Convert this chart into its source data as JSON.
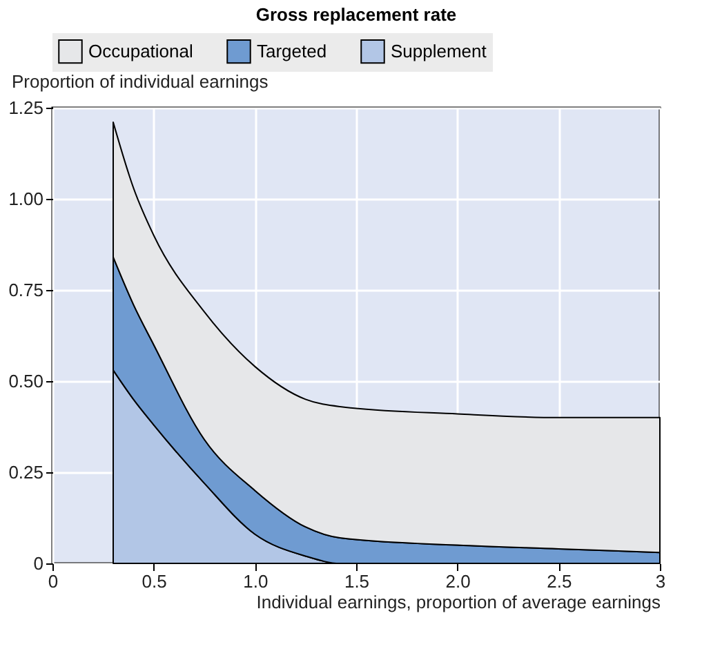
{
  "chart_data": {
    "type": "area",
    "title": "Gross replacement rate",
    "xlabel": "Individual earnings, proportion of average earnings",
    "ylabel": "Proportion of individual earnings",
    "stacked": true,
    "x": [
      0.3,
      0.4,
      0.5,
      0.75,
      1.0,
      1.25,
      1.42,
      2.0,
      2.5,
      3.0
    ],
    "series": [
      {
        "name": "Supplement",
        "color": "#b2c6e6",
        "values": [
          0.53,
          0.45,
          0.38,
          0.22,
          0.08,
          0.02,
          0,
          0,
          0,
          0
        ]
      },
      {
        "name": "Targeted",
        "color": "#6f9bd1",
        "values": [
          0.31,
          0.26,
          0.22,
          0.12,
          0.12,
          0.08,
          0.07,
          0.05,
          0.04,
          0.03
        ]
      },
      {
        "name": "Occupational",
        "color": "#e6e7e9",
        "values": [
          0.37,
          0.32,
          0.3,
          0.35,
          0.34,
          0.35,
          0.36,
          0.36,
          0.36,
          0.37
        ]
      }
    ],
    "xlim": [
      0,
      3
    ],
    "xticks": [
      0,
      0.5,
      {
        "value": 1,
        "label": "1.0"
      },
      1.5,
      {
        "value": 2,
        "label": "2.0"
      },
      2.5,
      3
    ],
    "ylim": [
      0,
      1.25
    ],
    "yticks": [
      0,
      0.25,
      {
        "value": 0.5,
        "label": "0.50"
      },
      0.75,
      {
        "value": 1,
        "label": "1.00"
      },
      1.25
    ],
    "grid": true,
    "legend": "top"
  }
}
